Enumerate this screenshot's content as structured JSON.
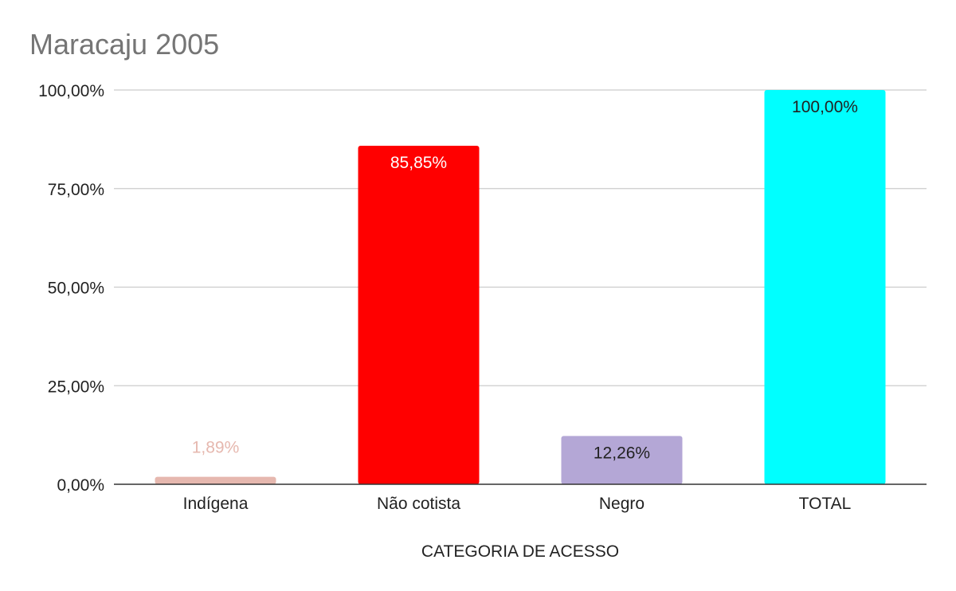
{
  "chart_data": {
    "type": "bar",
    "title": "Maracaju 2005",
    "xlabel": "CATEGORIA DE ACESSO",
    "ylabel": "",
    "ylim": [
      0,
      100
    ],
    "yticks": [
      0,
      25,
      50,
      75,
      100
    ],
    "ytick_labels": [
      "0,00%",
      "25,00%",
      "50,00%",
      "75,00%",
      "100,00%"
    ],
    "grid": true,
    "legend": "none",
    "categories": [
      "Indígena",
      "Não cotista",
      "Negro",
      "TOTAL"
    ],
    "values": [
      1.89,
      85.85,
      12.26,
      100.0
    ],
    "value_labels": [
      "1,89%",
      "85,85%",
      "12,26%",
      "100,00%"
    ],
    "colors": [
      "#e6b8af",
      "#ff0000",
      "#b4a7d6",
      "#00ffff"
    ],
    "label_colors": [
      "#e6b8af",
      "#ffffff",
      "#222222",
      "#222222"
    ]
  }
}
